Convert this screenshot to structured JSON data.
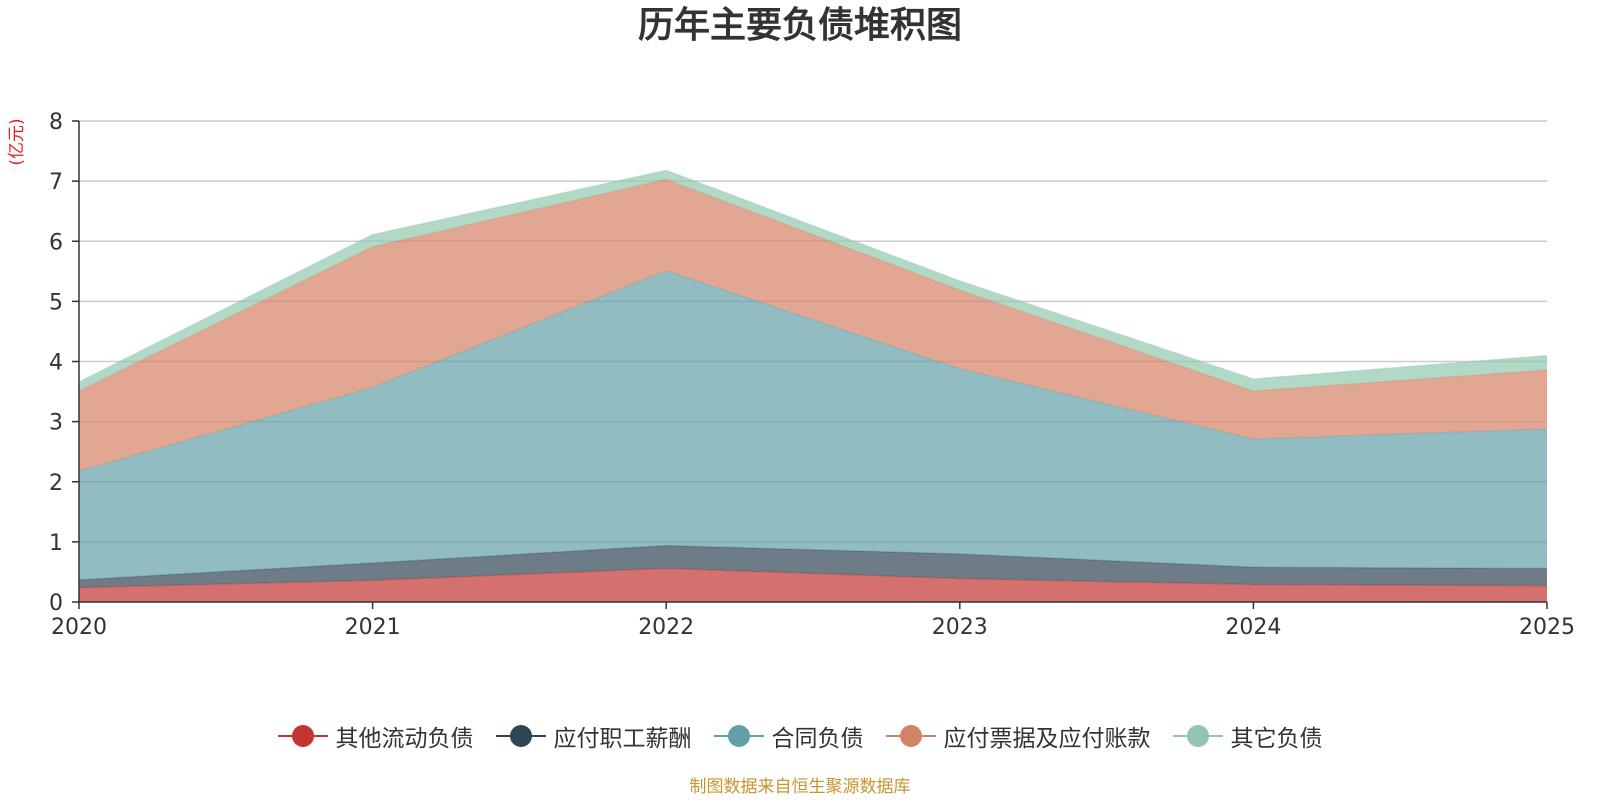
{
  "chart_data": {
    "type": "area",
    "stacked": true,
    "title": "历年主要负债堆积图",
    "ylabel": "(亿元)",
    "xlabel": "",
    "categories": [
      "2020",
      "2021",
      "2022",
      "2023",
      "2024",
      "2025"
    ],
    "ylim": [
      0,
      8
    ],
    "yticks": [
      "0",
      "1",
      "2",
      "3",
      "4",
      "5",
      "6",
      "7",
      "8"
    ],
    "grid": true,
    "legend_position": "bottom-center",
    "series": [
      {
        "name": "其他流动负债",
        "color": "#c23531",
        "values": [
          0.24,
          0.36,
          0.56,
          0.39,
          0.29,
          0.27
        ]
      },
      {
        "name": "应付职工薪酬",
        "color": "#2f4554",
        "values": [
          0.13,
          0.29,
          0.38,
          0.41,
          0.29,
          0.29
        ]
      },
      {
        "name": "合同负债",
        "color": "#61a0a8",
        "values": [
          1.81,
          2.92,
          4.57,
          3.08,
          2.13,
          2.32
        ]
      },
      {
        "name": "应付票据及应付账款",
        "color": "#d48265",
        "values": [
          1.33,
          2.34,
          1.52,
          1.31,
          0.8,
          0.98
        ]
      },
      {
        "name": "其它负债",
        "color": "#91c7ae",
        "values": [
          0.15,
          0.2,
          0.15,
          0.15,
          0.2,
          0.24
        ]
      }
    ]
  },
  "footer": {
    "source": "制图数据来自恒生聚源数据库"
  },
  "colors": {
    "title": "#333333",
    "axis": "#333333",
    "grid": "#cccccc",
    "unit_label": "#e02020",
    "footer": "#c9942f"
  }
}
